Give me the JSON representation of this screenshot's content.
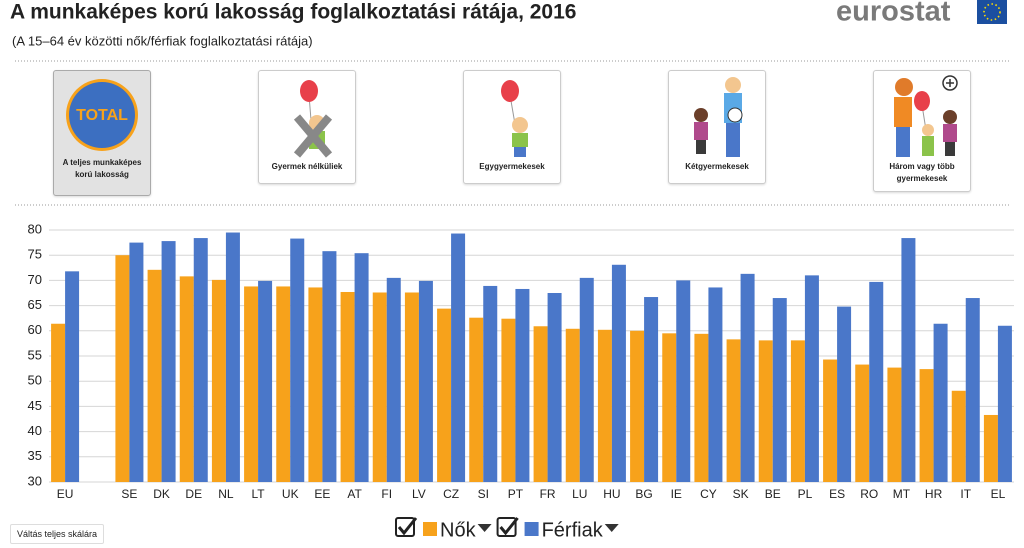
{
  "header": {
    "logo": "eurostat"
  },
  "filters": [
    {
      "badge": "TOTAL",
      "label": "A teljes munkaképes korú lakosság"
    },
    {
      "label": "Gyermek nélküliek"
    },
    {
      "label": "Egygyermekesek"
    },
    {
      "label": "Kétgyermekesek"
    },
    {
      "label": "Három vagy több gyermekesek"
    }
  ],
  "button": "Váltás teljes skálára",
  "chart_data": {
    "type": "bar",
    "title": "A munkaképes korú lakosság foglalkoztatási rátája, 2016",
    "subtitle": "(A 15–64 év közötti nők/férfiak foglalkoztatási rátája)",
    "categories": [
      "EU",
      null,
      "SE",
      "DK",
      "DE",
      "NL",
      "LT",
      "UK",
      "EE",
      "AT",
      "FI",
      "LV",
      "CZ",
      "SI",
      "PT",
      "FR",
      "LU",
      "HU",
      "BG",
      "IE",
      "CY",
      "SK",
      "BE",
      "PL",
      "ES",
      "RO",
      "MT",
      "HR",
      "IT",
      "EL"
    ],
    "series": [
      {
        "name": "Nők",
        "color": "#f7a21b",
        "values": [
          61.4,
          null,
          75.0,
          72.1,
          70.8,
          70.1,
          68.8,
          68.8,
          68.6,
          67.7,
          67.6,
          67.6,
          64.4,
          62.6,
          62.4,
          60.9,
          60.4,
          60.2,
          60.0,
          59.5,
          59.4,
          58.3,
          58.1,
          58.1,
          54.3,
          53.3,
          52.7,
          52.4,
          48.1,
          43.3
        ]
      },
      {
        "name": "Férfiak",
        "color": "#4a77c9",
        "values": [
          71.8,
          null,
          77.5,
          77.8,
          78.4,
          79.5,
          69.9,
          78.3,
          75.8,
          75.4,
          70.5,
          69.9,
          79.3,
          68.9,
          68.3,
          67.5,
          70.5,
          73.1,
          66.7,
          70.0,
          68.6,
          71.3,
          66.5,
          71.0,
          64.8,
          69.7,
          78.4,
          61.4,
          66.5,
          61.0
        ]
      }
    ],
    "ylim": [
      30,
      80
    ],
    "yticks": [
      30,
      35,
      40,
      45,
      50,
      55,
      60,
      65,
      70,
      75,
      80
    ],
    "grid": true
  }
}
